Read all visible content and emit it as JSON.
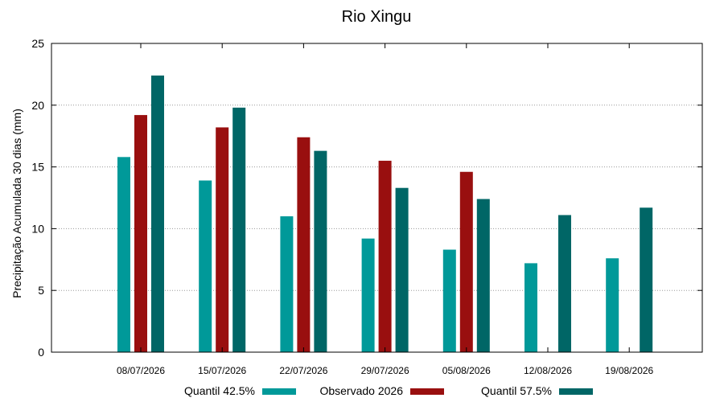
{
  "chart_data": {
    "type": "bar",
    "title": "Rio Xingu",
    "xlabel": "",
    "ylabel": "Precipitação Acumulada 30 dias (mm)",
    "ylim": [
      0,
      25
    ],
    "yticks": [
      "0",
      "5",
      "10",
      "15",
      "20",
      "25"
    ],
    "grid": "horizontal dotted",
    "legend_position": "bottom",
    "categories": [
      "08/07/2026",
      "15/07/2026",
      "22/07/2026",
      "29/07/2026",
      "05/08/2026",
      "12/08/2026",
      "19/08/2026"
    ],
    "series": [
      {
        "name": "Quantil 42.5%",
        "color": "#009999",
        "values": [
          15.8,
          13.9,
          11.0,
          9.2,
          8.3,
          7.2,
          7.6
        ]
      },
      {
        "name": "Observado 2026",
        "color": "#990f0f",
        "values": [
          19.2,
          18.2,
          17.4,
          15.5,
          14.6,
          null,
          null
        ]
      },
      {
        "name": "Quantil 57.5%",
        "color": "#006666",
        "values": [
          22.4,
          19.8,
          16.3,
          13.3,
          12.4,
          11.1,
          11.7
        ]
      }
    ]
  }
}
